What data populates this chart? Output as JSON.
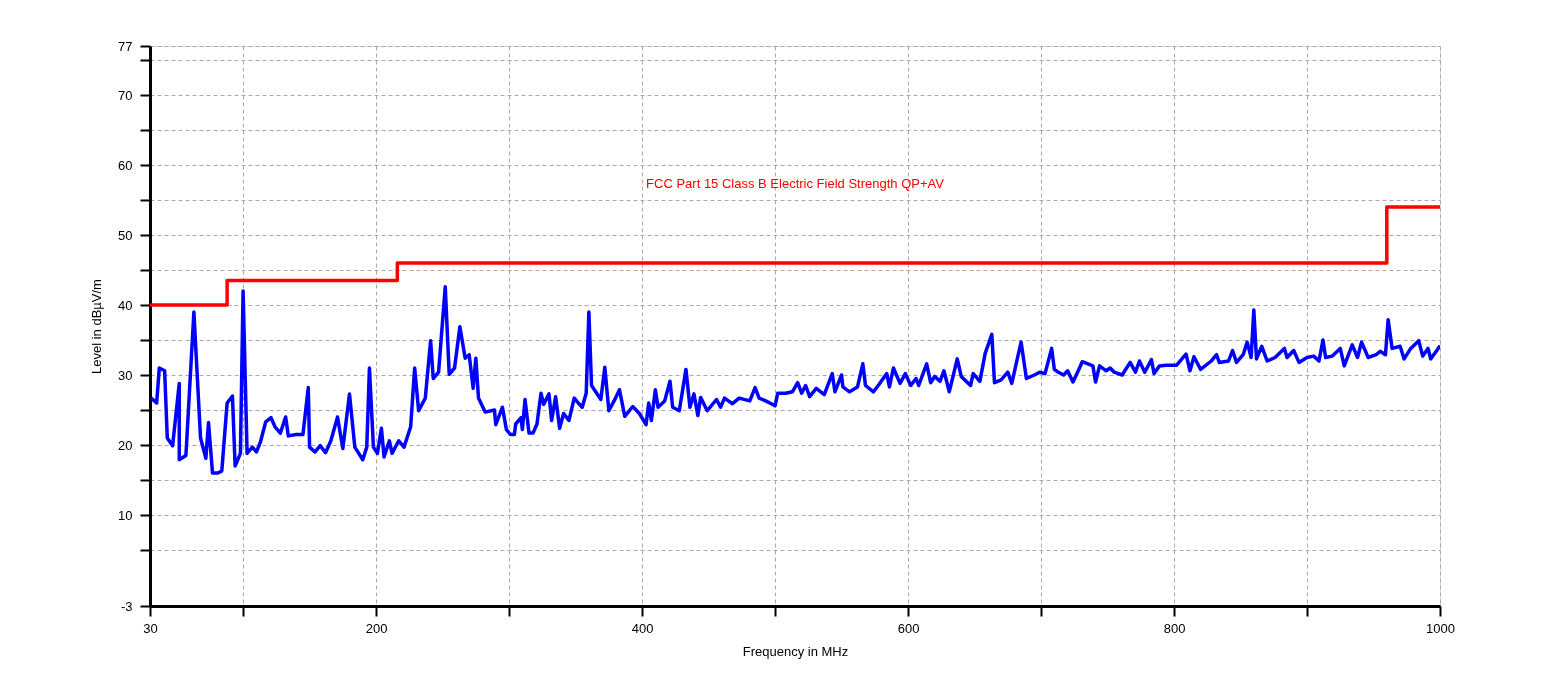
{
  "chart_data": {
    "type": "line",
    "xlabel": "Frequency in MHz",
    "ylabel": "Level in dBµV/m",
    "xlim": [
      30,
      1000
    ],
    "ylim": [
      -3,
      77
    ],
    "xticks": [
      30,
      {
        "value": 100,
        "label": null
      },
      200,
      {
        "value": 300,
        "label": null
      },
      400,
      {
        "value": 500,
        "label": null
      },
      600,
      {
        "value": 700,
        "label": null
      },
      800,
      {
        "value": 900,
        "label": null
      },
      1000
    ],
    "yticks": [
      -3,
      {
        "value": 5,
        "label": null
      },
      10,
      {
        "value": 15,
        "label": null
      },
      20,
      {
        "value": 25,
        "label": null
      },
      30,
      {
        "value": 35,
        "label": null
      },
      40,
      {
        "value": 45,
        "label": null
      },
      50,
      {
        "value": 55,
        "label": null
      },
      60,
      {
        "value": 65,
        "label": null
      },
      70,
      {
        "value": 75,
        "label": null
      },
      77
    ],
    "grid": true,
    "series": [
      {
        "color": "#0000ff",
        "x": [
          31,
          35,
          37,
          41,
          43,
          47,
          52,
          52,
          57,
          63,
          68,
          72,
          74,
          77,
          81,
          84,
          88,
          92,
          94,
          98,
          100,
          103,
          107,
          110,
          113,
          117,
          121,
          124,
          128,
          132,
          134,
          140,
          145,
          149,
          150,
          154,
          158,
          162,
          166,
          171,
          175,
          180,
          184,
          190,
          193,
          195,
          198,
          201,
          204,
          206,
          210,
          212,
          217,
          221,
          226,
          229,
          232,
          237,
          241,
          243,
          247,
          252,
          255,
          259,
          263,
          267,
          270,
          273,
          275,
          277,
          282,
          289,
          290,
          295,
          298,
          301,
          304,
          305,
          309,
          310,
          312,
          315,
          318,
          321,
          324,
          326,
          330,
          332,
          335,
          338,
          341,
          345,
          349,
          352,
          355,
          358,
          360,
          362,
          369,
          372,
          375,
          379,
          383,
          387,
          393,
          398,
          403,
          405,
          407,
          410,
          412,
          417,
          421,
          423,
          428,
          433,
          436,
          439,
          442,
          444,
          449,
          456,
          459,
          462,
          468,
          473,
          481,
          485,
          488,
          493,
          500,
          502,
          508,
          513,
          517,
          520,
          523,
          526,
          531,
          537,
          543,
          545,
          550,
          551,
          556,
          562,
          566,
          568,
          574,
          578,
          584,
          586,
          589,
          594,
          598,
          602,
          606,
          608,
          614,
          617,
          620,
          624,
          627,
          631,
          637,
          640,
          647,
          649,
          654,
          658,
          663,
          665,
          670,
          675,
          678,
          685,
          689,
          695,
          699,
          703,
          708,
          710,
          713,
          717,
          720,
          724,
          728,
          731,
          739,
          741,
          744,
          749,
          752,
          755,
          761,
          767,
          771,
          774,
          778,
          783,
          785,
          789,
          794,
          802,
          809,
          812,
          815,
          820,
          828,
          832,
          834,
          841,
          844,
          847,
          852,
          855,
          858,
          860,
          862,
          866,
          870,
          876,
          883,
          885,
          890,
          894,
          900,
          905,
          909,
          912,
          914,
          919,
          925,
          928,
          934,
          938,
          941,
          946,
          952,
          955,
          959,
          961,
          964,
          970,
          973,
          978,
          984,
          987,
          991,
          993,
          998,
          1000
        ],
        "values": [
          26.7,
          26.0,
          31.0,
          30.6,
          21.0,
          19.9,
          28.8,
          17.9,
          18.5,
          39.0,
          21.0,
          18.1,
          23.2,
          16.0,
          16.0,
          16.3,
          26.0,
          27.0,
          17.0,
          18.8,
          42.0,
          18.8,
          19.7,
          19.0,
          20.4,
          23.3,
          23.9,
          22.6,
          21.7,
          24.0,
          21.3,
          21.5,
          21.5,
          28.2,
          19.7,
          19.0,
          19.9,
          18.9,
          20.6,
          24.0,
          19.5,
          27.3,
          19.7,
          17.9,
          19.7,
          31.0,
          19.7,
          18.8,
          22.4,
          18.3,
          20.6,
          18.8,
          20.6,
          19.7,
          22.6,
          31.0,
          24.9,
          26.7,
          34.9,
          29.5,
          30.4,
          42.6,
          30.1,
          31.0,
          36.9,
          32.4,
          32.9,
          28.1,
          32.4,
          26.7,
          24.7,
          25.0,
          22.9,
          25.4,
          22.2,
          21.5,
          21.5,
          23.0,
          23.9,
          22.2,
          26.5,
          21.7,
          21.7,
          23.0,
          27.4,
          25.8,
          27.3,
          23.5,
          26.9,
          22.4,
          24.5,
          23.5,
          26.7,
          26.0,
          25.4,
          27.4,
          39.0,
          28.5,
          26.5,
          31.1,
          24.9,
          26.3,
          27.9,
          24.1,
          25.5,
          24.5,
          22.9,
          26.0,
          23.5,
          27.9,
          25.4,
          26.3,
          29.1,
          25.4,
          24.9,
          30.8,
          25.4,
          27.3,
          24.2,
          26.8,
          24.9,
          26.5,
          25.4,
          26.7,
          25.9,
          26.7,
          26.3,
          28.2,
          26.7,
          26.3,
          25.6,
          27.4,
          27.4,
          27.6,
          28.9,
          27.4,
          28.5,
          26.9,
          28.1,
          27.2,
          30.2,
          27.6,
          30.0,
          28.3,
          27.6,
          28.3,
          31.6,
          28.5,
          27.6,
          28.6,
          30.2,
          28.3,
          31.0,
          28.8,
          30.2,
          28.5,
          29.5,
          28.5,
          31.6,
          28.9,
          29.8,
          29.1,
          30.6,
          27.6,
          32.3,
          29.8,
          28.5,
          30.2,
          29.1,
          33.1,
          35.8,
          28.9,
          29.3,
          30.4,
          28.8,
          34.7,
          29.5,
          30.0,
          30.4,
          30.2,
          33.8,
          30.8,
          30.4,
          30.0,
          30.6,
          29.0,
          30.6,
          31.9,
          31.3,
          29.0,
          31.3,
          30.6,
          31.0,
          30.4,
          30.0,
          31.8,
          30.4,
          32.0,
          30.4,
          32.2,
          30.2,
          31.3,
          31.4,
          31.4,
          33.0,
          30.6,
          32.6,
          30.8,
          32.0,
          32.9,
          31.8,
          32.0,
          33.5,
          31.8,
          32.9,
          34.7,
          32.5,
          39.3,
          32.3,
          34.1,
          32.0,
          32.5,
          33.8,
          32.5,
          33.5,
          31.8,
          32.5,
          32.7,
          32.0,
          35.0,
          32.5,
          32.7,
          33.8,
          31.3,
          34.3,
          32.5,
          34.7,
          32.5,
          32.9,
          33.4,
          32.9,
          37.9,
          33.8,
          34.1,
          32.3,
          33.8,
          34.9,
          32.7,
          33.8,
          32.3,
          33.6,
          34.2
        ]
      },
      {
        "name": "FCC Part 15 Class B Electric Field Strength QP+AV",
        "color": "#ff0000",
        "x": [
          30,
          88,
          88,
          216,
          216,
          960,
          960,
          1000
        ],
        "values": [
          40,
          40,
          43.5,
          43.5,
          46,
          46,
          54,
          54
        ]
      }
    ]
  }
}
